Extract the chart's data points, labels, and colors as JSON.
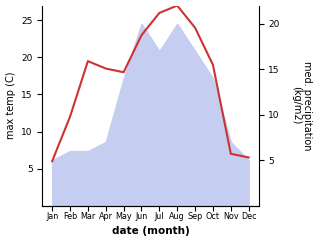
{
  "months": [
    "Jan",
    "Feb",
    "Mar",
    "Apr",
    "May",
    "Jun",
    "Jul",
    "Aug",
    "Sep",
    "Oct",
    "Nov",
    "Dec"
  ],
  "temperature": [
    6,
    12,
    19.5,
    18.5,
    18,
    23,
    26,
    27,
    24,
    19,
    7,
    6.5
  ],
  "precipitation": [
    5,
    6,
    6,
    7,
    14,
    20,
    17,
    20,
    17,
    14,
    7,
    5
  ],
  "temp_ylim": [
    0,
    27
  ],
  "precip_ylim": [
    0,
    22
  ],
  "temp_yticks": [
    5,
    10,
    15,
    20,
    25
  ],
  "precip_yticks": [
    5,
    10,
    15,
    20
  ],
  "temp_color": "#cc3333",
  "precip_color": "#c5cef0",
  "left_ylabel": "max temp (C)",
  "right_ylabel": "med. precipitation\n(kg/m2)",
  "xlabel": "date (month)",
  "background_color": "#ffffff",
  "fig_width": 3.18,
  "fig_height": 2.42,
  "dpi": 100
}
